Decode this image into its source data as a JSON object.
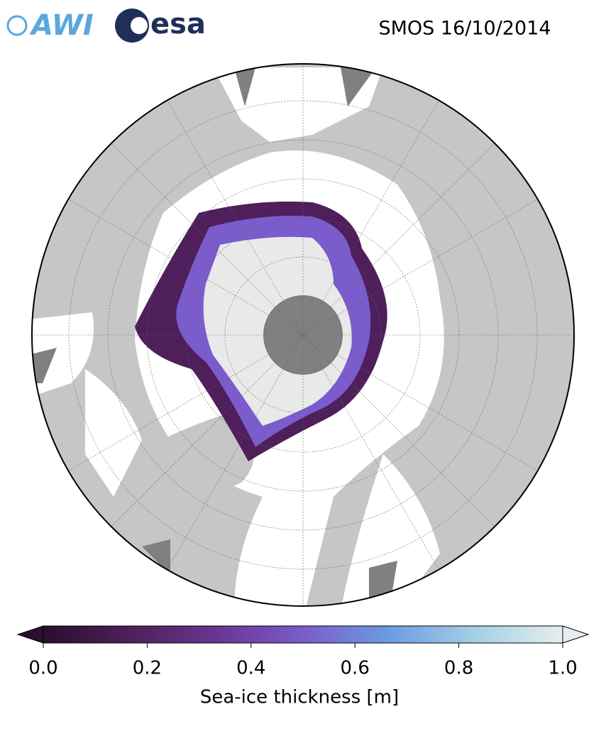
{
  "header": {
    "logos": [
      "AWI",
      "esa"
    ],
    "title": "SMOS 16/10/2014"
  },
  "colorbar": {
    "label": "Sea-ice thickness [m]",
    "lim": [
      0,
      1
    ],
    "ticks": [
      {
        "value": 0,
        "label": "0.0"
      },
      {
        "value": 0.2,
        "label": "0.2"
      },
      {
        "value": 0.4,
        "label": "0.4"
      },
      {
        "value": 0.6,
        "label": "0.6"
      },
      {
        "value": 0.8,
        "label": "0.8"
      },
      {
        "value": 1,
        "label": "1.0"
      }
    ],
    "colormap": [
      "#2a0f2e",
      "#4e1f5a",
      "#6a3590",
      "#7a5ccc",
      "#6c9ce2",
      "#a5d0e4",
      "#e4eeef"
    ]
  }
}
